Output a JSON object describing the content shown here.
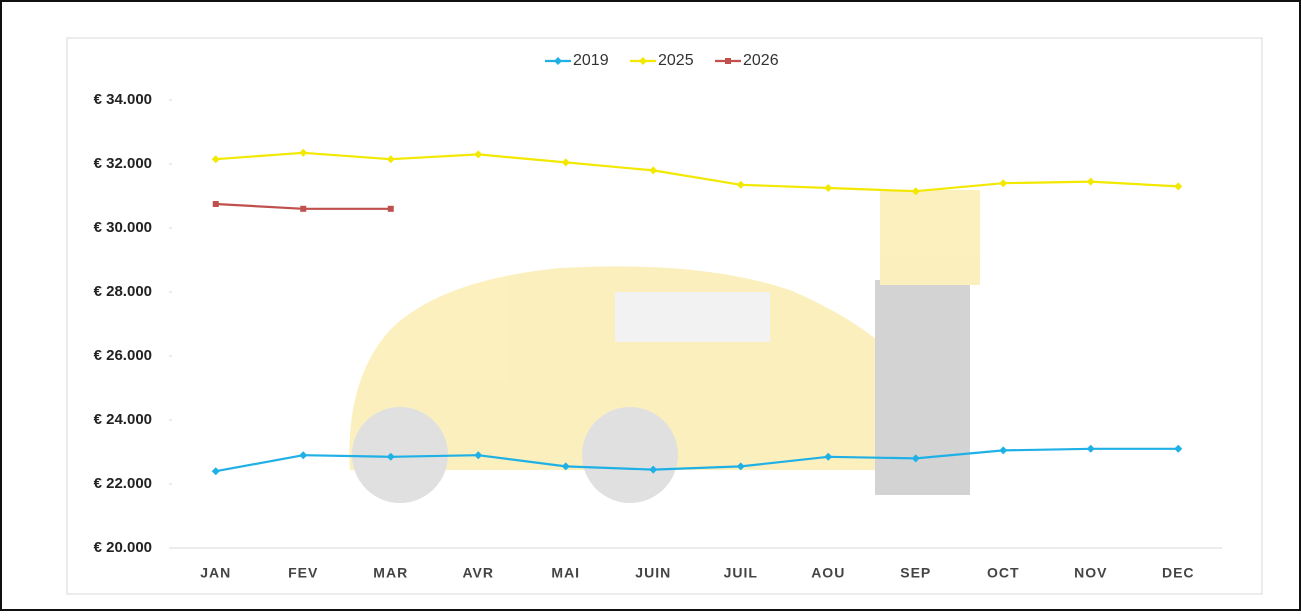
{
  "chart_data": {
    "type": "line",
    "categories": [
      "JAN",
      "FEV",
      "MAR",
      "AVR",
      "MAI",
      "JUIN",
      "JUIL",
      "AOU",
      "SEP",
      "OCT",
      "NOV",
      "DEC"
    ],
    "series": [
      {
        "name": "2019",
        "color": "#1fb0e6",
        "marker": "diamond",
        "values": [
          22400,
          22900,
          22850,
          22900,
          22550,
          22450,
          22550,
          22850,
          22800,
          23050,
          23100,
          23100
        ]
      },
      {
        "name": "2025",
        "color": "#f2e800",
        "marker": "diamond",
        "values": [
          32150,
          32350,
          32150,
          32300,
          32050,
          31800,
          31350,
          31250,
          31150,
          31400,
          31450,
          31300
        ]
      },
      {
        "name": "2026",
        "color": "#c0504d",
        "marker": "square",
        "values": [
          30750,
          30600,
          30600,
          null,
          null,
          null,
          null,
          null,
          null,
          null,
          null,
          null
        ]
      }
    ],
    "ylim": [
      20000,
      34000
    ],
    "yticks": [
      {
        "value": 20000,
        "label": "€ 20.000"
      },
      {
        "value": 22000,
        "label": "€ 22.000"
      },
      {
        "value": 24000,
        "label": "€ 24.000"
      },
      {
        "value": 26000,
        "label": "€ 26.000"
      },
      {
        "value": 28000,
        "label": "€ 28.000"
      },
      {
        "value": 30000,
        "label": "€ 30.000"
      },
      {
        "value": 32000,
        "label": "€ 32.000"
      },
      {
        "value": 34000,
        "label": "€ 34.000"
      }
    ],
    "grid": false,
    "legend": "top"
  }
}
